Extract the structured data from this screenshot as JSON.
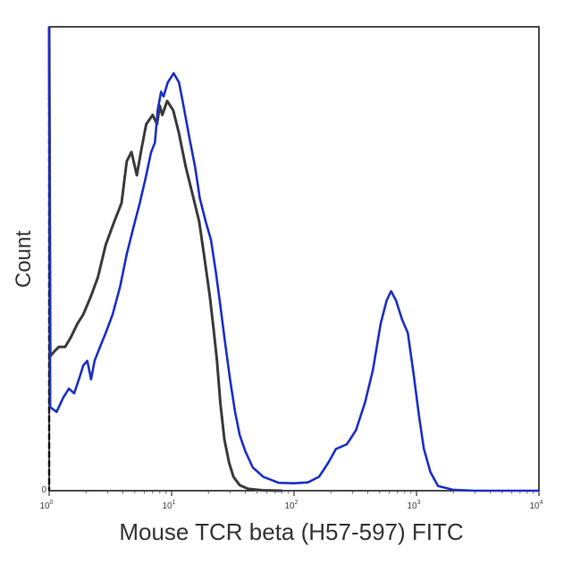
{
  "chart_data": {
    "type": "line",
    "title": "",
    "xlabel": "Mouse TCR beta (H57-597) FITC",
    "ylabel": "Count",
    "x_scale": "log",
    "xlim": [
      1,
      10000
    ],
    "ylim": [
      0,
      1
    ],
    "grid": false,
    "legend": "none",
    "x_ticks": [
      {
        "value": 1,
        "base": "10",
        "exp": "0"
      },
      {
        "value": 10,
        "base": "10",
        "exp": "1"
      },
      {
        "value": 100,
        "base": "10",
        "exp": "2"
      },
      {
        "value": 1000,
        "base": "10",
        "exp": "3"
      },
      {
        "value": 10000,
        "base": "10",
        "exp": "4"
      }
    ],
    "y_tick_label": "0",
    "series": [
      {
        "color": "#3a3a3a",
        "points": [
          [
            1.0,
            1.0
          ],
          [
            1.02,
            0.29
          ],
          [
            1.1,
            0.3
          ],
          [
            1.2,
            0.31
          ],
          [
            1.35,
            0.31
          ],
          [
            1.5,
            0.33
          ],
          [
            1.7,
            0.36
          ],
          [
            1.9,
            0.38
          ],
          [
            2.2,
            0.42
          ],
          [
            2.5,
            0.46
          ],
          [
            2.9,
            0.53
          ],
          [
            3.4,
            0.58
          ],
          [
            3.9,
            0.62
          ],
          [
            4.3,
            0.71
          ],
          [
            4.7,
            0.73
          ],
          [
            5.2,
            0.68
          ],
          [
            5.7,
            0.74
          ],
          [
            6.2,
            0.79
          ],
          [
            7.0,
            0.81
          ],
          [
            7.6,
            0.79
          ],
          [
            8.0,
            0.83
          ],
          [
            8.4,
            0.81
          ],
          [
            9.2,
            0.84
          ],
          [
            10.3,
            0.82
          ],
          [
            11.5,
            0.77
          ],
          [
            13.0,
            0.7
          ],
          [
            14.8,
            0.64
          ],
          [
            16.8,
            0.58
          ],
          [
            18.6,
            0.5
          ],
          [
            20.5,
            0.42
          ],
          [
            22.0,
            0.35
          ],
          [
            23.5,
            0.28
          ],
          [
            25.0,
            0.19
          ],
          [
            27.0,
            0.11
          ],
          [
            29.5,
            0.06
          ],
          [
            32.0,
            0.03
          ],
          [
            36.0,
            0.012
          ],
          [
            42.0,
            0.004
          ],
          [
            55.0,
            0.001
          ],
          [
            80.0,
            0.0
          ]
        ]
      },
      {
        "color": "#1a2fc8",
        "points": [
          [
            1.0,
            1.0
          ],
          [
            1.02,
            0.18
          ],
          [
            1.15,
            0.17
          ],
          [
            1.3,
            0.2
          ],
          [
            1.45,
            0.22
          ],
          [
            1.6,
            0.21
          ],
          [
            1.75,
            0.24
          ],
          [
            1.9,
            0.27
          ],
          [
            2.05,
            0.28
          ],
          [
            2.2,
            0.24
          ],
          [
            2.35,
            0.28
          ],
          [
            2.6,
            0.31
          ],
          [
            2.9,
            0.34
          ],
          [
            3.3,
            0.38
          ],
          [
            3.8,
            0.44
          ],
          [
            4.3,
            0.51
          ],
          [
            4.9,
            0.57
          ],
          [
            5.5,
            0.62
          ],
          [
            6.2,
            0.68
          ],
          [
            6.8,
            0.73
          ],
          [
            7.3,
            0.75
          ],
          [
            7.7,
            0.82
          ],
          [
            8.2,
            0.86
          ],
          [
            8.6,
            0.85
          ],
          [
            9.3,
            0.88
          ],
          [
            10.4,
            0.9
          ],
          [
            11.5,
            0.88
          ],
          [
            12.5,
            0.83
          ],
          [
            14.0,
            0.76
          ],
          [
            15.5,
            0.7
          ],
          [
            17.0,
            0.63
          ],
          [
            19.0,
            0.58
          ],
          [
            21.0,
            0.54
          ],
          [
            23.0,
            0.47
          ],
          [
            25.0,
            0.4
          ],
          [
            27.0,
            0.33
          ],
          [
            30.0,
            0.24
          ],
          [
            33.0,
            0.17
          ],
          [
            36.0,
            0.12
          ],
          [
            40.0,
            0.085
          ],
          [
            46.0,
            0.05
          ],
          [
            56.0,
            0.03
          ],
          [
            75.0,
            0.017
          ],
          [
            100.0,
            0.016
          ],
          [
            130.0,
            0.018
          ],
          [
            160.0,
            0.03
          ],
          [
            190.0,
            0.06
          ],
          [
            220.0,
            0.09
          ],
          [
            270.0,
            0.1
          ],
          [
            320.0,
            0.13
          ],
          [
            380.0,
            0.19
          ],
          [
            440.0,
            0.26
          ],
          [
            510.0,
            0.36
          ],
          [
            570.0,
            0.41
          ],
          [
            620.0,
            0.43
          ],
          [
            680.0,
            0.41
          ],
          [
            760.0,
            0.37
          ],
          [
            850.0,
            0.34
          ],
          [
            950.0,
            0.25
          ],
          [
            1050.0,
            0.16
          ],
          [
            1150.0,
            0.09
          ],
          [
            1300.0,
            0.04
          ],
          [
            1500.0,
            0.01
          ],
          [
            2000.0,
            0.002
          ],
          [
            3000.0,
            0.0
          ],
          [
            10000.0,
            0.0
          ]
        ]
      }
    ]
  }
}
